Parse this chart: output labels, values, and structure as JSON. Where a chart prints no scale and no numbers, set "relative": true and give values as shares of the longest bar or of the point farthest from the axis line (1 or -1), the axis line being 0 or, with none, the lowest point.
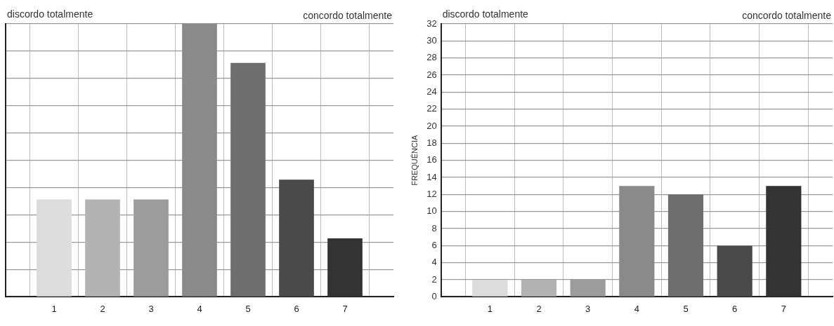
{
  "chart_data": [
    {
      "type": "bar",
      "relative": true,
      "categories": [
        "1",
        "2",
        "3",
        "4",
        "5",
        "6",
        "7"
      ],
      "values": [
        0.357,
        0.357,
        0.357,
        1,
        0.857,
        0.429,
        0.214
      ],
      "colors": [
        "#dcdcdc",
        "#b3b3b3",
        "#9c9c9c",
        "#8a8a8a",
        "#6e6e6e",
        "#4a4a4a",
        "#333333"
      ],
      "annotations": [
        "discordo totalmente",
        "concordo totalmente"
      ],
      "grid": true,
      "tick_labels": "x"
    },
    {
      "type": "bar",
      "categories": [
        "1",
        "2",
        "3",
        "4",
        "5",
        "6",
        "7"
      ],
      "values": [
        2,
        2,
        2,
        13,
        12,
        6,
        13
      ],
      "colors": [
        "#dcdcdc",
        "#b3b3b3",
        "#9c9c9c",
        "#8a8a8a",
        "#6e6e6e",
        "#4a4a4a",
        "#333333"
      ],
      "ylabel": "FREQUÊNCIA",
      "ylim": [
        0,
        32
      ],
      "yticks": [
        0,
        2,
        4,
        6,
        8,
        10,
        12,
        14,
        16,
        18,
        20,
        22,
        24,
        26,
        28,
        30,
        32
      ],
      "annotations": [
        "discordo totalmente",
        "concordo totalmente"
      ],
      "grid": true
    }
  ]
}
